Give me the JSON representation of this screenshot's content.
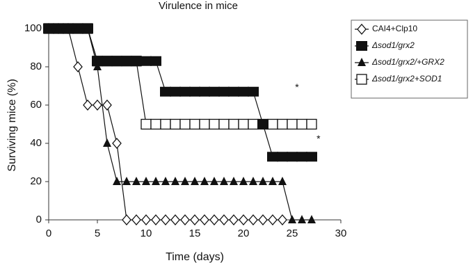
{
  "chart_data": {
    "type": "line",
    "title": "Virulence in mice",
    "x_label": "Time (days)",
    "y_label": "Surviving mice (%)",
    "xlim": [
      0,
      30
    ],
    "ylim": [
      0,
      100
    ],
    "xticks": [
      0,
      5,
      10,
      15,
      20,
      25,
      30
    ],
    "yticks": [
      0,
      20,
      40,
      60,
      80,
      100
    ],
    "legend": "right",
    "series": [
      {
        "name": "CAI4+Clp10",
        "marker": "diamond-open",
        "color": "#111111",
        "x": [
          0,
          1,
          2,
          3,
          4,
          5,
          6,
          7,
          8,
          9,
          10,
          11,
          12,
          13,
          14,
          15,
          16,
          17,
          18,
          19,
          20,
          21,
          22,
          23,
          24
        ],
        "values": [
          100,
          100,
          100,
          80,
          60,
          60,
          60,
          40,
          0,
          0,
          0,
          0,
          0,
          0,
          0,
          0,
          0,
          0,
          0,
          0,
          0,
          0,
          0,
          0,
          0
        ]
      },
      {
        "name": "Δsod1/grx2+SOD1",
        "marker": "square-open",
        "color": "#111111",
        "x": [
          0,
          1,
          2,
          3,
          4,
          5,
          6,
          7,
          8,
          9,
          10,
          11,
          12,
          13,
          14,
          15,
          16,
          17,
          18,
          19,
          20,
          21,
          22,
          23,
          24,
          25,
          26,
          27
        ],
        "values": [
          100,
          100,
          100,
          100,
          100,
          83,
          83,
          83,
          83,
          83,
          50,
          50,
          50,
          50,
          50,
          50,
          50,
          50,
          50,
          50,
          50,
          50,
          50,
          50,
          50,
          50,
          50,
          50
        ]
      },
      {
        "name": "Δsod1/grx2",
        "marker": "square-filled",
        "color": "#111111",
        "x": [
          0,
          1,
          2,
          3,
          4,
          5,
          6,
          7,
          8,
          9,
          10,
          11,
          12,
          13,
          14,
          15,
          16,
          17,
          18,
          19,
          20,
          21,
          22,
          23,
          24,
          25,
          26,
          27
        ],
        "values": [
          100,
          100,
          100,
          100,
          100,
          83,
          83,
          83,
          83,
          83,
          83,
          83,
          67,
          67,
          67,
          67,
          67,
          67,
          67,
          67,
          67,
          67,
          50,
          33,
          33,
          33,
          33,
          33
        ]
      },
      {
        "name": "Δsod1/grx2/+GRX2",
        "marker": "triangle-filled",
        "color": "#111111",
        "x": [
          0,
          1,
          2,
          3,
          4,
          5,
          6,
          7,
          8,
          9,
          10,
          11,
          12,
          13,
          14,
          15,
          16,
          17,
          18,
          19,
          20,
          21,
          22,
          23,
          24,
          25,
          26,
          27
        ],
        "values": [
          100,
          100,
          100,
          100,
          100,
          80,
          40,
          20,
          20,
          20,
          20,
          20,
          20,
          20,
          20,
          20,
          20,
          20,
          20,
          20,
          20,
          20,
          20,
          20,
          20,
          0,
          0,
          0
        ]
      }
    ],
    "legend_order": [
      0,
      2,
      3,
      1
    ],
    "annotations": [
      {
        "text": "*",
        "x": 25.5,
        "y": 69
      },
      {
        "text": "*",
        "x": 27.7,
        "y": 42
      }
    ]
  }
}
